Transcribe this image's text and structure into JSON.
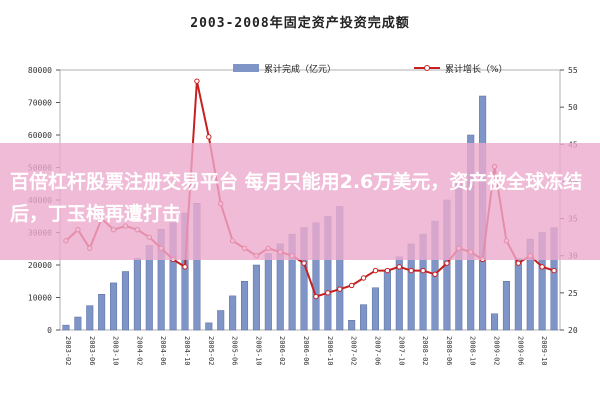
{
  "chart_data": {
    "type": "bar+line",
    "title": "2003-2008年固定资产投资完成额",
    "legend": {
      "placement": "top",
      "bar_label": "累计完成（亿元）",
      "line_label": "累计增长（%）"
    },
    "left_axis": {
      "ylim": [
        0,
        80000
      ],
      "ticks": [
        "0",
        "10000",
        "20000",
        "30000",
        "40000",
        "50000",
        "60000",
        "70000",
        "80000"
      ]
    },
    "right_axis": {
      "ylim": [
        20,
        55
      ],
      "ticks": [
        "20",
        "25",
        "30",
        "35",
        "40",
        "45",
        "50",
        "55"
      ]
    },
    "x_labels": [
      "2003-02",
      "2003-04",
      "2003-06",
      "2003-08",
      "2003-10",
      "2003-12",
      "2004-02",
      "2004-04",
      "2004-06",
      "2004-08",
      "2004-10",
      "2004-12",
      "2005-02",
      "2005-04",
      "2005-06",
      "2005-08",
      "2005-10",
      "2005-12",
      "2006-02",
      "2006-04",
      "2006-06",
      "2006-08",
      "2006-10",
      "2006-12",
      "2007-02",
      "2007-04",
      "2007-06",
      "2007-08",
      "2007-10",
      "2007-12",
      "2008-02",
      "2008-04",
      "2008-06",
      "2008-08",
      "2008-10",
      "2008-12",
      "2009-02",
      "2009-04",
      "2009-06",
      "2009-08",
      "2009-10",
      "2009-12"
    ],
    "bar_series": {
      "name": "累计完成（亿元）",
      "color": "#7f95c7",
      "values": [
        1500,
        4000,
        7500,
        11000,
        14500,
        18000,
        22000,
        26000,
        31000,
        33000,
        36000,
        39000,
        2200,
        6000,
        10500,
        15000,
        20000,
        23500,
        26500,
        29500,
        31500,
        33000,
        35000,
        38000,
        3000,
        7800,
        13000,
        18500,
        22500,
        26500,
        29500,
        33500,
        40000,
        45000,
        60000,
        72000,
        5000,
        15000,
        22000,
        28000,
        30000,
        31500
      ]
    },
    "line_series": {
      "name": "累计增长（%）",
      "color": "#c82020",
      "values": [
        32,
        33.5,
        31,
        35,
        33.5,
        34,
        33.5,
        32.5,
        31,
        29.5,
        28.5,
        53.5,
        46,
        37,
        32,
        31,
        30,
        31,
        30.5,
        30,
        29,
        24.5,
        25,
        25.5,
        26,
        27,
        28,
        28,
        28.5,
        28,
        28,
        27.5,
        29,
        31,
        30.5,
        29.5,
        42,
        32,
        29,
        30,
        28.5,
        28
      ]
    }
  },
  "overlay": {
    "text": "百倍杠杆股票注册交易平台 每月只能用2.6万美元，资产被全球冻结后，丁玉梅再遭打击"
  }
}
